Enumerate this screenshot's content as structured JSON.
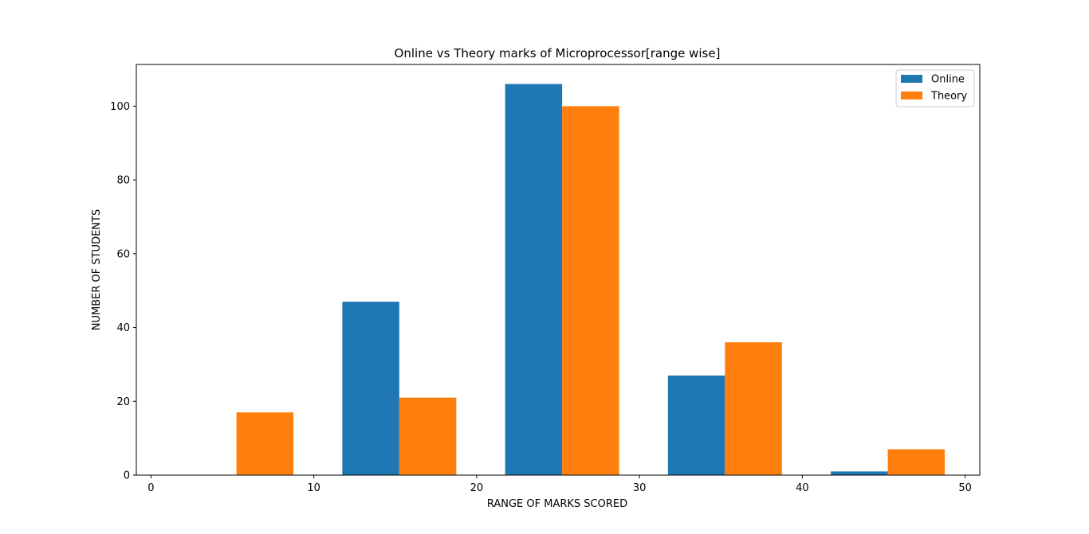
{
  "chart_data": {
    "type": "bar",
    "title": "Online vs Theory marks of Microprocessor[range wise]",
    "xlabel": "RANGE OF MARKS SCORED",
    "ylabel": "NUMBER OF STUDENTS",
    "xlim": [
      -0.9,
      50.9
    ],
    "ylim": [
      0,
      111.3
    ],
    "xticks": [
      0,
      10,
      20,
      30,
      40,
      50
    ],
    "yticks": [
      0,
      20,
      40,
      60,
      80,
      100
    ],
    "bar_width": 3.5,
    "legend_position": "top-right",
    "grid": false,
    "series": [
      {
        "name": "Online",
        "color": "#1f77b4",
        "x": [
          1.75,
          11.75,
          21.75,
          31.75,
          41.75
        ],
        "values": [
          0,
          47,
          106,
          27,
          1
        ]
      },
      {
        "name": "Theory",
        "color": "#ff7f0e",
        "x": [
          5.25,
          15.25,
          25.25,
          35.25,
          45.25
        ],
        "values": [
          17,
          21,
          100,
          36,
          7
        ]
      }
    ]
  }
}
